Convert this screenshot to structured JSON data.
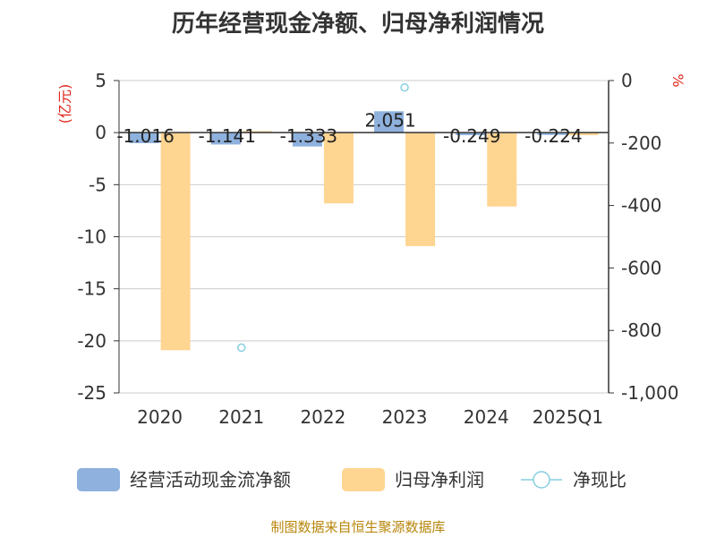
{
  "title": "历年经营现金净额、归母净利润情况",
  "source": "制图数据来自恒生聚源数据库",
  "colors": {
    "cash": "#8eb1dd",
    "profit": "#ffd592",
    "ratio": "#86cfe0",
    "unit": "#e0261b",
    "axis": "#333333",
    "grid": "#cccccc"
  },
  "chart_data": {
    "type": "bar",
    "title": "历年经营现金净额、归母净利润情况",
    "categories": [
      "2020",
      "2021",
      "2022",
      "2023",
      "2024",
      "2025Q1"
    ],
    "left_axis": {
      "label": "(亿元)",
      "ylim": [
        -25,
        5
      ],
      "ticks": [
        5,
        0,
        -5,
        -10,
        -15,
        -20,
        -25
      ],
      "tick_labels": [
        "5",
        "0",
        "-5",
        "-10",
        "-15",
        "-20",
        "-25"
      ]
    },
    "right_axis": {
      "label": "%",
      "ylim": [
        -1000,
        0
      ],
      "ticks": [
        0,
        -200,
        -400,
        -600,
        -800,
        -1000
      ],
      "tick_labels": [
        "0",
        "-200",
        "-400",
        "-600",
        "-800",
        "-1,000"
      ]
    },
    "grid": true,
    "legend_position": "bottom",
    "series": [
      {
        "name": "经营活动现金流净额",
        "type": "bar",
        "axis": "left",
        "values": [
          -1.016,
          -1.141,
          -1.333,
          2.051,
          -0.249,
          -0.224
        ],
        "labels": [
          "-1.016",
          "-1.141",
          "-1.333",
          "2.051",
          "-0.249",
          "-0.224"
        ]
      },
      {
        "name": "归母净利润",
        "type": "bar",
        "axis": "left",
        "values": [
          -20.9,
          0.15,
          -6.8,
          -10.9,
          -7.1,
          -0.25
        ]
      },
      {
        "name": "净现比",
        "type": "scatter",
        "axis": "right",
        "values": [
          null,
          null,
          null,
          null,
          null,
          null
        ],
        "points": [
          [
            1,
            -855
          ],
          [
            3,
            -22
          ]
        ]
      }
    ]
  }
}
